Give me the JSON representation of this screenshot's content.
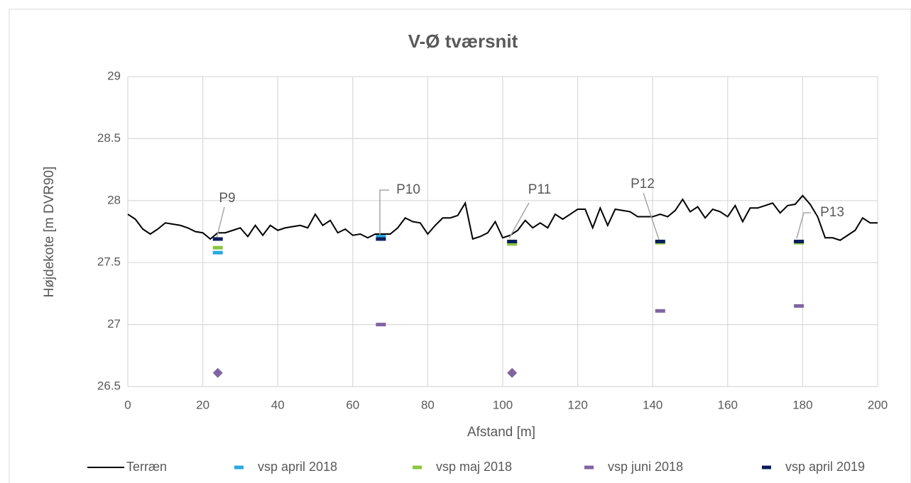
{
  "chart_data": {
    "type": "line",
    "title": "V-Ø tværsnit",
    "x_label": "Afstand [m]",
    "y_label": "Højdekote [m DVR90]",
    "xlim": [
      0,
      200
    ],
    "xticks": [
      0,
      20,
      40,
      60,
      80,
      100,
      120,
      140,
      160,
      180,
      200
    ],
    "ylim": [
      26.5,
      29
    ],
    "yticks": [
      26.5,
      27,
      27.5,
      28,
      28.5,
      29
    ],
    "grid": true,
    "legend": "bottom",
    "annotations": [
      "P9",
      "P10",
      "P11",
      "P12",
      "P13"
    ],
    "terrain": {
      "name": "Terræn",
      "color": "#000000",
      "x": [
        0,
        2,
        4,
        6,
        8,
        10,
        12,
        14,
        16,
        18,
        20,
        22,
        24,
        26,
        28,
        30,
        32,
        34,
        36,
        38,
        40,
        42,
        44,
        46,
        48,
        50,
        52,
        54,
        56,
        58,
        60,
        62,
        64,
        66,
        68,
        70,
        72,
        74,
        76,
        78,
        80,
        82,
        84,
        86,
        88,
        90,
        92,
        94,
        96,
        98,
        100,
        102,
        104,
        106,
        108,
        110,
        112,
        114,
        116,
        118,
        120,
        122,
        124,
        126,
        128,
        130,
        132,
        134,
        136,
        138,
        140,
        142,
        144,
        146,
        148,
        150,
        152,
        154,
        156,
        158,
        160,
        162,
        164,
        166,
        168,
        170,
        172,
        174,
        176,
        178,
        180,
        182,
        184,
        186,
        188,
        190,
        192,
        194,
        196,
        198,
        200
      ],
      "values": [
        27.89,
        27.85,
        27.77,
        27.73,
        27.77,
        27.82,
        27.81,
        27.8,
        27.78,
        27.75,
        27.74,
        27.69,
        27.74,
        27.74,
        27.76,
        27.78,
        27.71,
        27.8,
        27.72,
        27.8,
        27.76,
        27.78,
        27.79,
        27.8,
        27.78,
        27.89,
        27.8,
        27.84,
        27.74,
        27.77,
        27.72,
        27.73,
        27.7,
        27.73,
        27.73,
        27.73,
        27.78,
        27.86,
        27.83,
        27.82,
        27.73,
        27.8,
        27.86,
        27.86,
        27.88,
        27.98,
        27.69,
        27.71,
        27.74,
        27.83,
        27.7,
        27.72,
        27.76,
        27.84,
        27.78,
        27.82,
        27.78,
        27.89,
        27.85,
        27.89,
        27.93,
        27.93,
        27.78,
        27.94,
        27.8,
        27.93,
        27.92,
        27.91,
        27.87,
        27.87,
        27.87,
        27.89,
        27.87,
        27.92,
        28.01,
        27.91,
        27.95,
        27.86,
        27.93,
        27.91,
        27.87,
        27.96,
        27.83,
        27.94,
        27.94,
        27.96,
        27.98,
        27.9,
        27.96,
        27.97,
        28.04,
        27.97,
        27.87,
        27.7,
        27.7,
        27.68,
        27.72,
        27.76,
        27.86,
        27.82,
        27.82
      ]
    },
    "x": [
      24,
      67.5,
      102.5,
      142,
      179
    ],
    "series": [
      {
        "name": "vsp april 2018",
        "color": "#29a8e0",
        "values": [
          27.58,
          27.71,
          27.66,
          27.67,
          27.67
        ]
      },
      {
        "name": "vsp maj 2018",
        "color": "#8dc63f",
        "values": [
          27.62,
          27.69,
          27.65,
          27.66,
          27.66
        ]
      },
      {
        "name": "vsp juni 2018",
        "color": "#8064a2",
        "values": [
          26.61,
          27.0,
          26.61,
          27.11,
          27.15
        ],
        "markers": [
          "diamond",
          "dash",
          "diamond",
          "dash",
          "dash"
        ]
      },
      {
        "name": "vsp april 2019",
        "color": "#0a1f5c",
        "values": [
          27.69,
          27.69,
          27.67,
          27.67,
          27.67
        ]
      }
    ]
  }
}
